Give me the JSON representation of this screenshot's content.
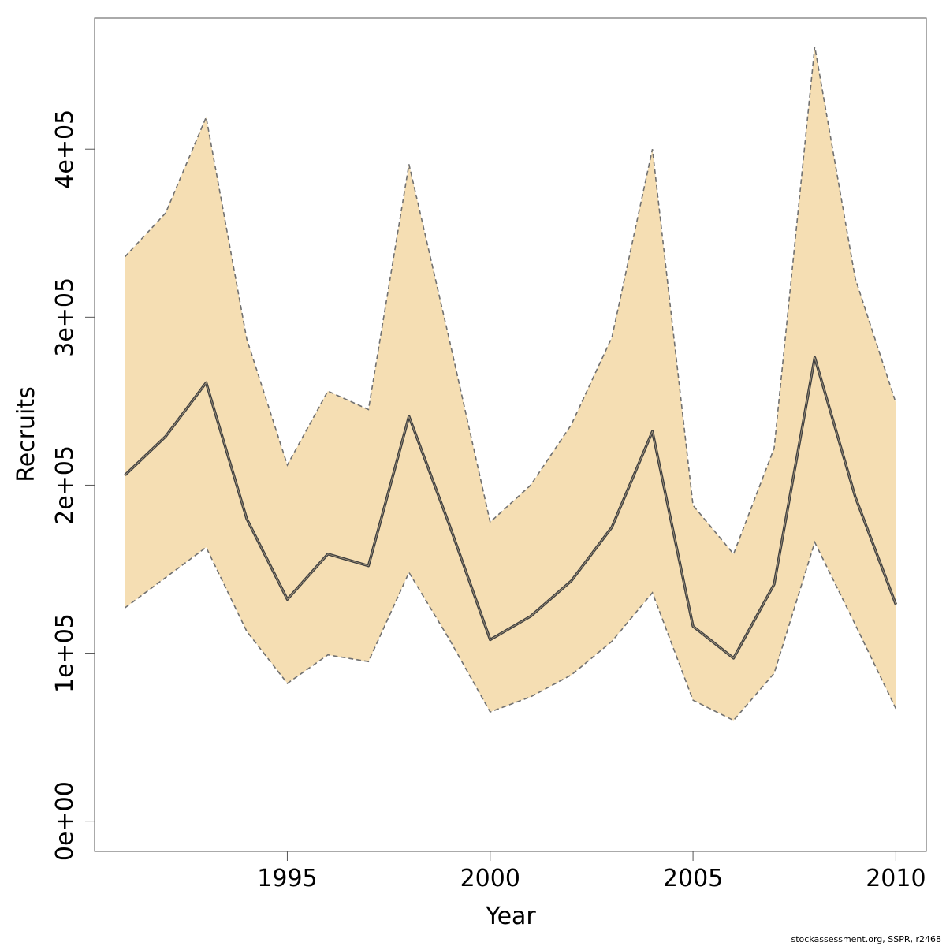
{
  "chart_data": {
    "type": "area",
    "xlabel": "Year",
    "ylabel": "Recruits",
    "xlim": [
      1990.25,
      2010.75
    ],
    "ylim": [
      -18000,
      478000
    ],
    "x_ticks": [
      1995,
      2000,
      2005,
      2010
    ],
    "x_tick_labels": [
      "1995",
      "2000",
      "2005",
      "2010"
    ],
    "y_ticks": [
      0,
      100000,
      200000,
      300000,
      400000
    ],
    "y_tick_labels": [
      "0e+00",
      "1e+05",
      "2e+05",
      "3e+05",
      "4e+05"
    ],
    "x": [
      1991,
      1992,
      1993,
      1994,
      1995,
      1996,
      1997,
      1998,
      1999,
      2000,
      2001,
      2002,
      2003,
      2004,
      2005,
      2006,
      2007,
      2008,
      2009,
      2010
    ],
    "series": [
      {
        "values": [
          206000,
          229000,
          261000,
          180000,
          132000,
          159000,
          152000,
          241000,
          176000,
          108000,
          122000,
          143000,
          175000,
          232000,
          116000,
          97000,
          141000,
          276000,
          193000,
          129000
        ]
      }
    ],
    "interval": {
      "upper": [
        336000,
        362000,
        419000,
        287000,
        212000,
        256000,
        245000,
        391000,
        286000,
        178000,
        200000,
        236000,
        288000,
        400000,
        188000,
        159000,
        222000,
        461000,
        323000,
        249000
      ],
      "lower": [
        127000,
        145000,
        163000,
        113000,
        82000,
        99000,
        95000,
        148000,
        108000,
        65000,
        74000,
        87000,
        107000,
        136000,
        72000,
        60000,
        88000,
        166000,
        117000,
        67000
      ]
    },
    "colors": {
      "band": "#f5deb3",
      "line": "#404040",
      "bounds": "#707070"
    },
    "grid": false,
    "legend": "none"
  },
  "footer": "stockassessment.org, SSPR, r2468"
}
